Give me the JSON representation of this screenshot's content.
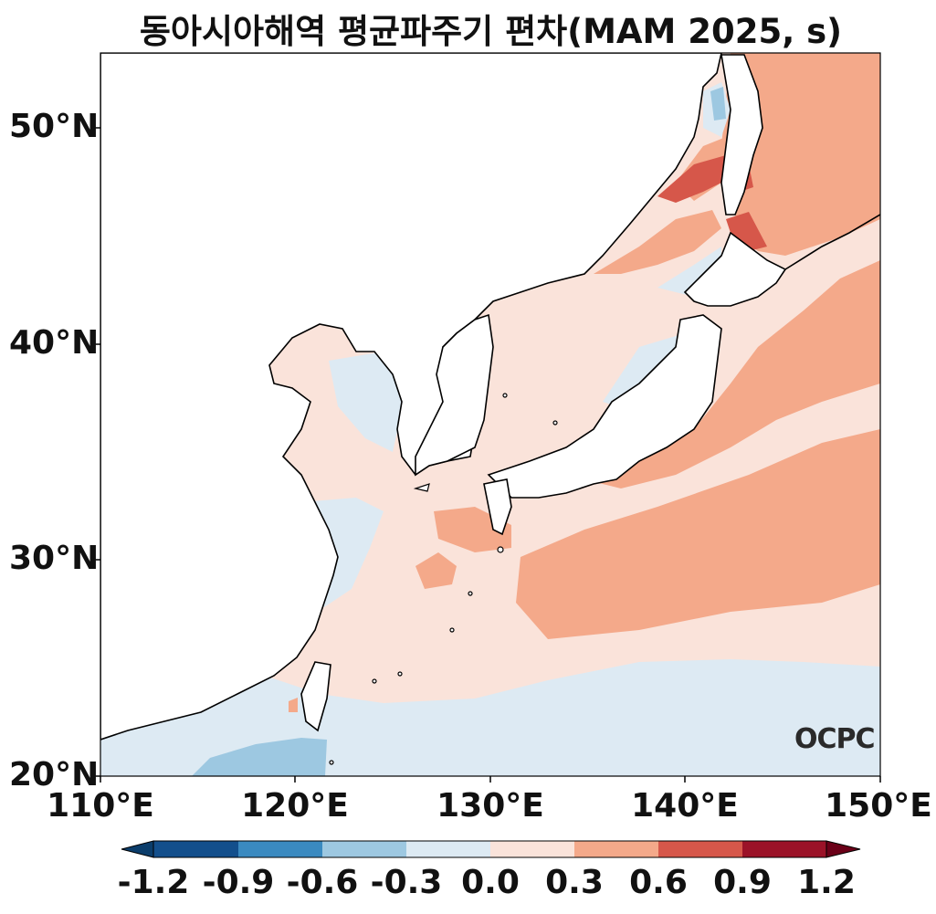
{
  "title": "동아시아해역 평균파주기 편차(MAM 2025, s)",
  "map": {
    "lat_labels": [
      "50°N",
      "40°N",
      "30°N",
      "20°N"
    ],
    "lon_labels": [
      "110°E",
      "120°E",
      "130°E",
      "140°E",
      "150°E"
    ],
    "extent": {
      "lon": [
        110,
        150
      ],
      "lat": [
        20,
        53.5
      ]
    }
  },
  "colorbar": {
    "ticks": [
      "-1.2",
      "-0.9",
      "-0.6",
      "-0.3",
      "0.0",
      "0.3",
      "0.6",
      "0.9",
      "1.2"
    ],
    "colors": [
      "#0b3d6b",
      "#134f8c",
      "#3a8ac0",
      "#9dc8e1",
      "#ddeaf3",
      "#fae3da",
      "#f4a98a",
      "#d6574a",
      "#9b1228",
      "#6b0018"
    ],
    "extend": "both"
  },
  "logo": "OCPC"
}
